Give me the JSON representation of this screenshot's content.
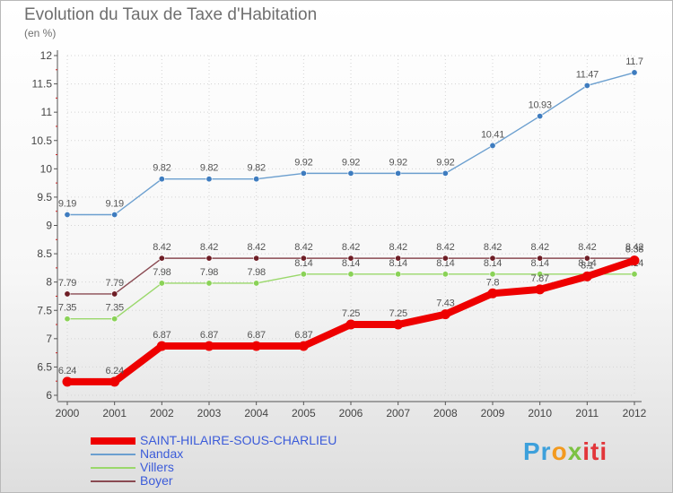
{
  "chart_data": {
    "type": "line",
    "title": "Evolution du Taux de Taxe d'Habitation",
    "subtitle": "(en %)",
    "xlabel": "",
    "ylabel": "",
    "ylim": [
      6,
      12
    ],
    "yticks": [
      "6",
      "6.5",
      "7",
      "7.5",
      "8",
      "8.5",
      "9",
      "9.5",
      "10",
      "10.5",
      "11",
      "11.5",
      "12"
    ],
    "categories": [
      "2000",
      "2001",
      "2002",
      "2003",
      "2004",
      "2005",
      "2006",
      "2007",
      "2008",
      "2009",
      "2010",
      "2011",
      "2012"
    ],
    "series": [
      {
        "name": "Nandax",
        "color": "#6b9fcf",
        "marker": "#3e7cbf",
        "values": [
          9.19,
          9.19,
          9.82,
          9.82,
          9.82,
          9.92,
          9.92,
          9.92,
          9.92,
          10.41,
          10.93,
          11.47,
          11.7
        ],
        "labels": [
          "9.19",
          "9.19",
          "9.82",
          "9.82",
          "9.82",
          "9.92",
          "9.92",
          "9.92",
          "9.92",
          "10.41",
          "10.93",
          "11.47",
          "11.7"
        ]
      },
      {
        "name": "Villers",
        "color": "#9ad86b",
        "marker": "#8ad257",
        "values": [
          7.35,
          7.35,
          7.98,
          7.98,
          7.98,
          8.14,
          8.14,
          8.14,
          8.14,
          8.14,
          8.14,
          8.14,
          8.14
        ],
        "labels": [
          "7.35",
          "7.35",
          "7.98",
          "7.98",
          "7.98",
          "8.14",
          "8.14",
          "8.14",
          "8.14",
          "8.14",
          "8.14",
          "8.14",
          "8.14"
        ]
      },
      {
        "name": "Boyer",
        "color": "#8a4a52",
        "marker": "#6e1e26",
        "values": [
          7.79,
          7.79,
          8.42,
          8.42,
          8.42,
          8.42,
          8.42,
          8.42,
          8.42,
          8.42,
          8.42,
          8.42,
          8.42
        ],
        "labels": [
          "7.79",
          "7.79",
          "8.42",
          "8.42",
          "8.42",
          "8.42",
          "8.42",
          "8.42",
          "8.42",
          "8.42",
          "8.42",
          "8.42",
          "8.42"
        ]
      },
      {
        "name": "SAINT-HILAIRE-SOUS-CHARLIEU",
        "color": "#ee0000",
        "marker": "#ee0000",
        "thick": true,
        "values": [
          6.24,
          6.24,
          6.87,
          6.87,
          6.87,
          6.87,
          7.25,
          7.25,
          7.43,
          7.8,
          7.87,
          8.1,
          8.38
        ],
        "labels": [
          "6.24",
          "6.24",
          "6.87",
          "6.87",
          "6.87",
          "6.87",
          "7.25",
          "7.25",
          "7.43",
          "7.8",
          "7.87",
          "8.1",
          "8.38"
        ]
      }
    ],
    "legend": [
      {
        "name": "SAINT-HILAIRE-SOUS-CHARLIEU",
        "color": "#ee0000",
        "thick": true
      },
      {
        "name": "Nandax",
        "color": "#6b9fcf"
      },
      {
        "name": "Villers",
        "color": "#9ad86b"
      },
      {
        "name": "Boyer",
        "color": "#8a4a52"
      }
    ]
  },
  "logo": {
    "parts": [
      "Pr",
      "o",
      "x",
      "iti"
    ]
  }
}
